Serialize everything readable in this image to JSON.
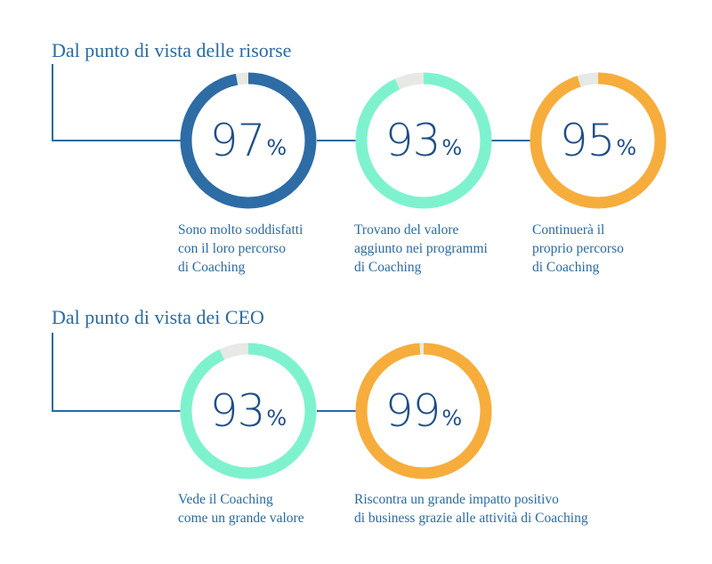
{
  "colors": {
    "dark_blue": "#2e6ca6",
    "mint": "#7ef2cf",
    "orange": "#f7ad3c",
    "track": "#e6e9e4",
    "text": "#2a6aa0",
    "number": "#1f4f86"
  },
  "chart_data": [
    {
      "type": "donut-group",
      "title": "Dal punto di vista delle risorse",
      "items": [
        {
          "value": 97,
          "unit": "%",
          "color": "#2e6ca6",
          "caption": [
            "Sono molto soddisfatti",
            "con il loro percorso",
            "di Coaching"
          ]
        },
        {
          "value": 93,
          "unit": "%",
          "color": "#7ef2cf",
          "caption": [
            "Trovano del valore",
            "aggiunto nei programmi",
            "di Coaching"
          ]
        },
        {
          "value": 95,
          "unit": "%",
          "color": "#f7ad3c",
          "caption": [
            "Continuerà il",
            "proprio percorso",
            "di Coaching"
          ]
        }
      ]
    },
    {
      "type": "donut-group",
      "title": "Dal punto di vista dei CEO",
      "items": [
        {
          "value": 93,
          "unit": "%",
          "color": "#7ef2cf",
          "caption": [
            "Vede il Coaching",
            "come un grande valore"
          ]
        },
        {
          "value": 99,
          "unit": "%",
          "color": "#f7ad3c",
          "caption": [
            "Riscontra un grande impatto positivo",
            "di business grazie alle attività di Coaching"
          ]
        }
      ]
    }
  ]
}
